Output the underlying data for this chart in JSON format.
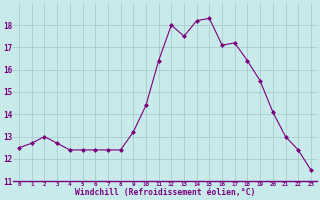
{
  "x": [
    0,
    1,
    2,
    3,
    4,
    5,
    6,
    7,
    8,
    9,
    10,
    11,
    12,
    13,
    14,
    15,
    16,
    17,
    18,
    19,
    20,
    21,
    22,
    23
  ],
  "y": [
    12.5,
    12.7,
    13.0,
    12.7,
    12.4,
    12.4,
    12.4,
    12.4,
    12.4,
    13.2,
    14.4,
    16.4,
    18.0,
    17.5,
    18.2,
    18.3,
    17.1,
    17.2,
    16.4,
    15.5,
    14.1,
    13.0,
    12.4,
    11.5
  ],
  "line_color": "#7b0080",
  "marker": "D",
  "marker_size": 2.0,
  "bg_color": "#c8eaea",
  "grid_color": "#a8cccc",
  "xlabel": "Windchill (Refroidissement éolien,°C)",
  "xlabel_color": "#7b0080",
  "tick_color": "#7b0080",
  "ylim": [
    11,
    19
  ],
  "xlim": [
    -0.5,
    23.5
  ],
  "yticks": [
    11,
    12,
    13,
    14,
    15,
    16,
    17,
    18
  ],
  "xticks": [
    0,
    1,
    2,
    3,
    4,
    5,
    6,
    7,
    8,
    9,
    10,
    11,
    12,
    13,
    14,
    15,
    16,
    17,
    18,
    19,
    20,
    21,
    22,
    23
  ],
  "spine_color": "#7b0080",
  "fig_width": 3.2,
  "fig_height": 2.0,
  "dpi": 100
}
